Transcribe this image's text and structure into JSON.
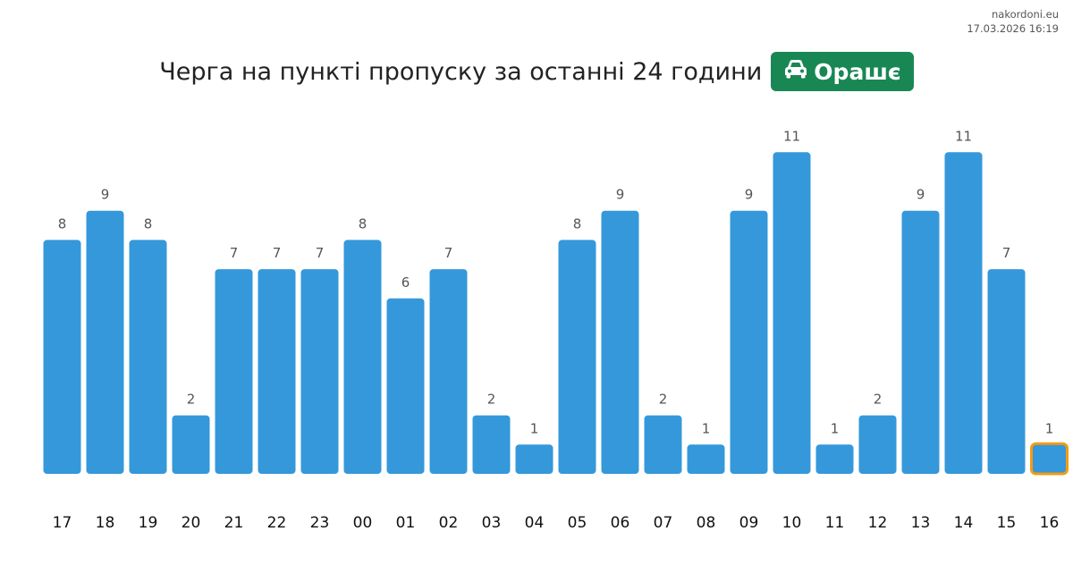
{
  "source": "nakordoni.eu",
  "timestamp": "17.03.2026 16:19",
  "title": "Черга на пункті пропуску за останні 24 години",
  "badge": {
    "icon": "car-icon",
    "label": "Орашє",
    "color": "#198754"
  },
  "colors": {
    "bar": "#3498db",
    "highlight_border": "#f39c12",
    "value_label": "#555555",
    "tick_label": "#111111"
  },
  "chart_data": {
    "type": "bar",
    "title": "Черга на пункті пропуску за останні 24 години",
    "xlabel": "",
    "ylabel": "",
    "categories": [
      "17",
      "18",
      "19",
      "20",
      "21",
      "22",
      "23",
      "00",
      "01",
      "02",
      "03",
      "04",
      "05",
      "06",
      "07",
      "08",
      "09",
      "10",
      "11",
      "12",
      "13",
      "14",
      "15",
      "16"
    ],
    "values": [
      8,
      9,
      8,
      2,
      7,
      7,
      7,
      8,
      6,
      7,
      2,
      1,
      8,
      9,
      2,
      1,
      9,
      11,
      1,
      2,
      9,
      11,
      7,
      1
    ],
    "ylim": [
      0,
      11
    ],
    "grid": false,
    "legend": "none",
    "data_labels": true,
    "highlighted_category": "16"
  }
}
